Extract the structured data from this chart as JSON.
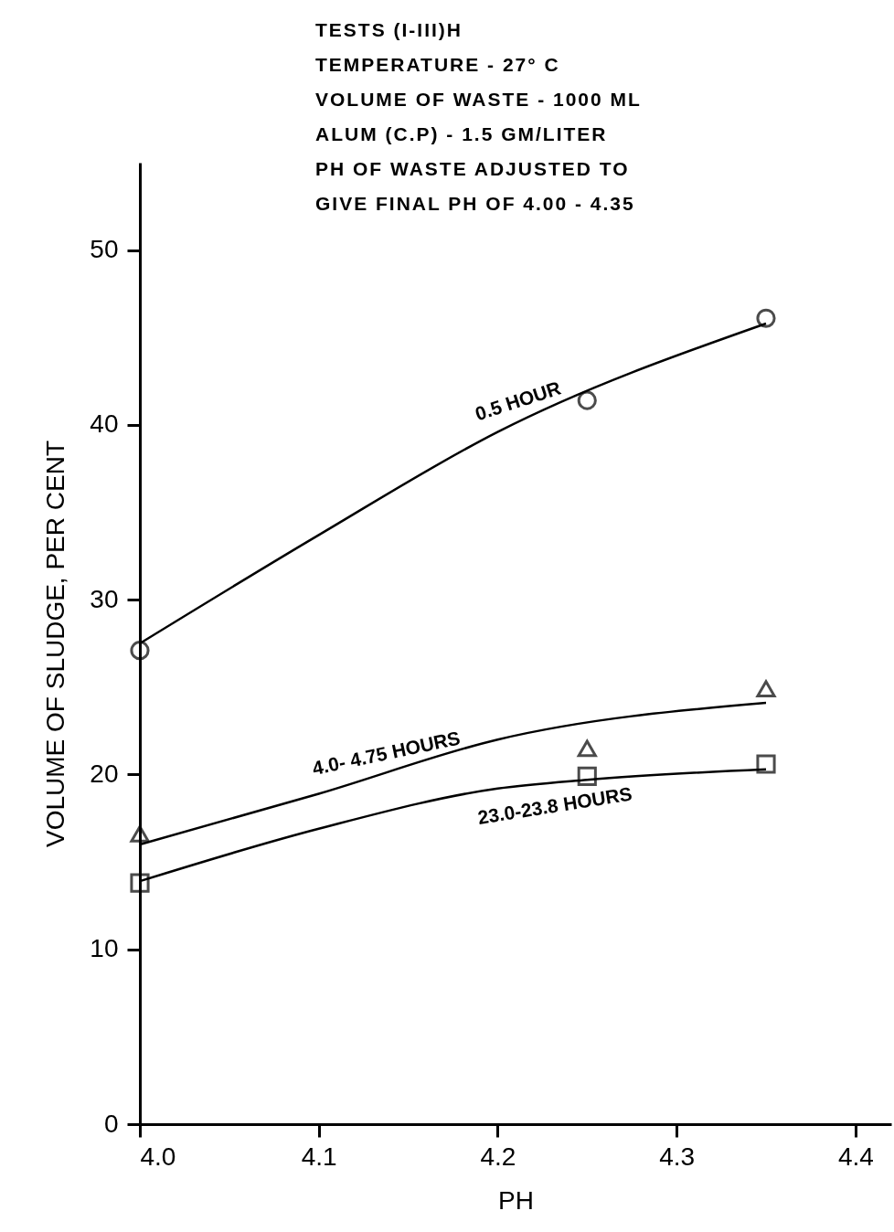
{
  "chart_data": {
    "type": "scatter",
    "xlabel": "PH",
    "ylabel": "VOLUME OF SLUDGE, PER CENT",
    "xlim": [
      4.0,
      4.42
    ],
    "ylim": [
      0,
      55
    ],
    "xticks": [
      {
        "value": 4.0,
        "label": "4.0"
      },
      4.1,
      4.2,
      4.3,
      4.4
    ],
    "yticks": [
      0,
      10,
      20,
      30,
      40,
      50
    ],
    "series": [
      {
        "marker": "circle",
        "color": "#000000",
        "x": [
          4.0,
          4.25,
          4.35
        ],
        "values": [
          27.1,
          41.4,
          46.1
        ]
      },
      {
        "marker": "triangle",
        "color": "#000000",
        "x": [
          4.0,
          4.25,
          4.35
        ],
        "values": [
          16.6,
          21.5,
          24.9
        ]
      },
      {
        "marker": "square",
        "color": "#000000",
        "x": [
          4.0,
          4.25,
          4.35
        ],
        "values": [
          13.8,
          19.9,
          20.6
        ]
      },
      {
        "type": "line",
        "name": "0.5 HOUR",
        "marker": "none",
        "color": "#000000",
        "x": [
          4.0,
          4.1,
          4.2,
          4.35
        ],
        "values": [
          27.5,
          33.7,
          39.6,
          45.8
        ]
      },
      {
        "type": "line",
        "name": "4.0- 4.75 HOURS",
        "marker": "none",
        "color": "#000000",
        "x": [
          4.0,
          4.1,
          4.2,
          4.35
        ],
        "values": [
          16.0,
          18.9,
          22.0,
          24.1
        ]
      },
      {
        "type": "line",
        "name": "23.0-23.8 HOURS",
        "marker": "none",
        "color": "#000000",
        "x": [
          4.0,
          4.1,
          4.2,
          4.25,
          4.35
        ],
        "values": [
          13.9,
          16.9,
          19.2,
          19.7,
          20.3
        ]
      }
    ],
    "annotations": [
      "TESTS (I-III)H",
      "TEMPERATURE - 27° C",
      "VOLUME OF WASTE - 1000 ML",
      "ALUM (C.P) - 1.5 GM/LITER",
      "PH OF WASTE ADJUSTED TO",
      "GIVE FINAL PH OF 4.00 - 4.35"
    ]
  }
}
